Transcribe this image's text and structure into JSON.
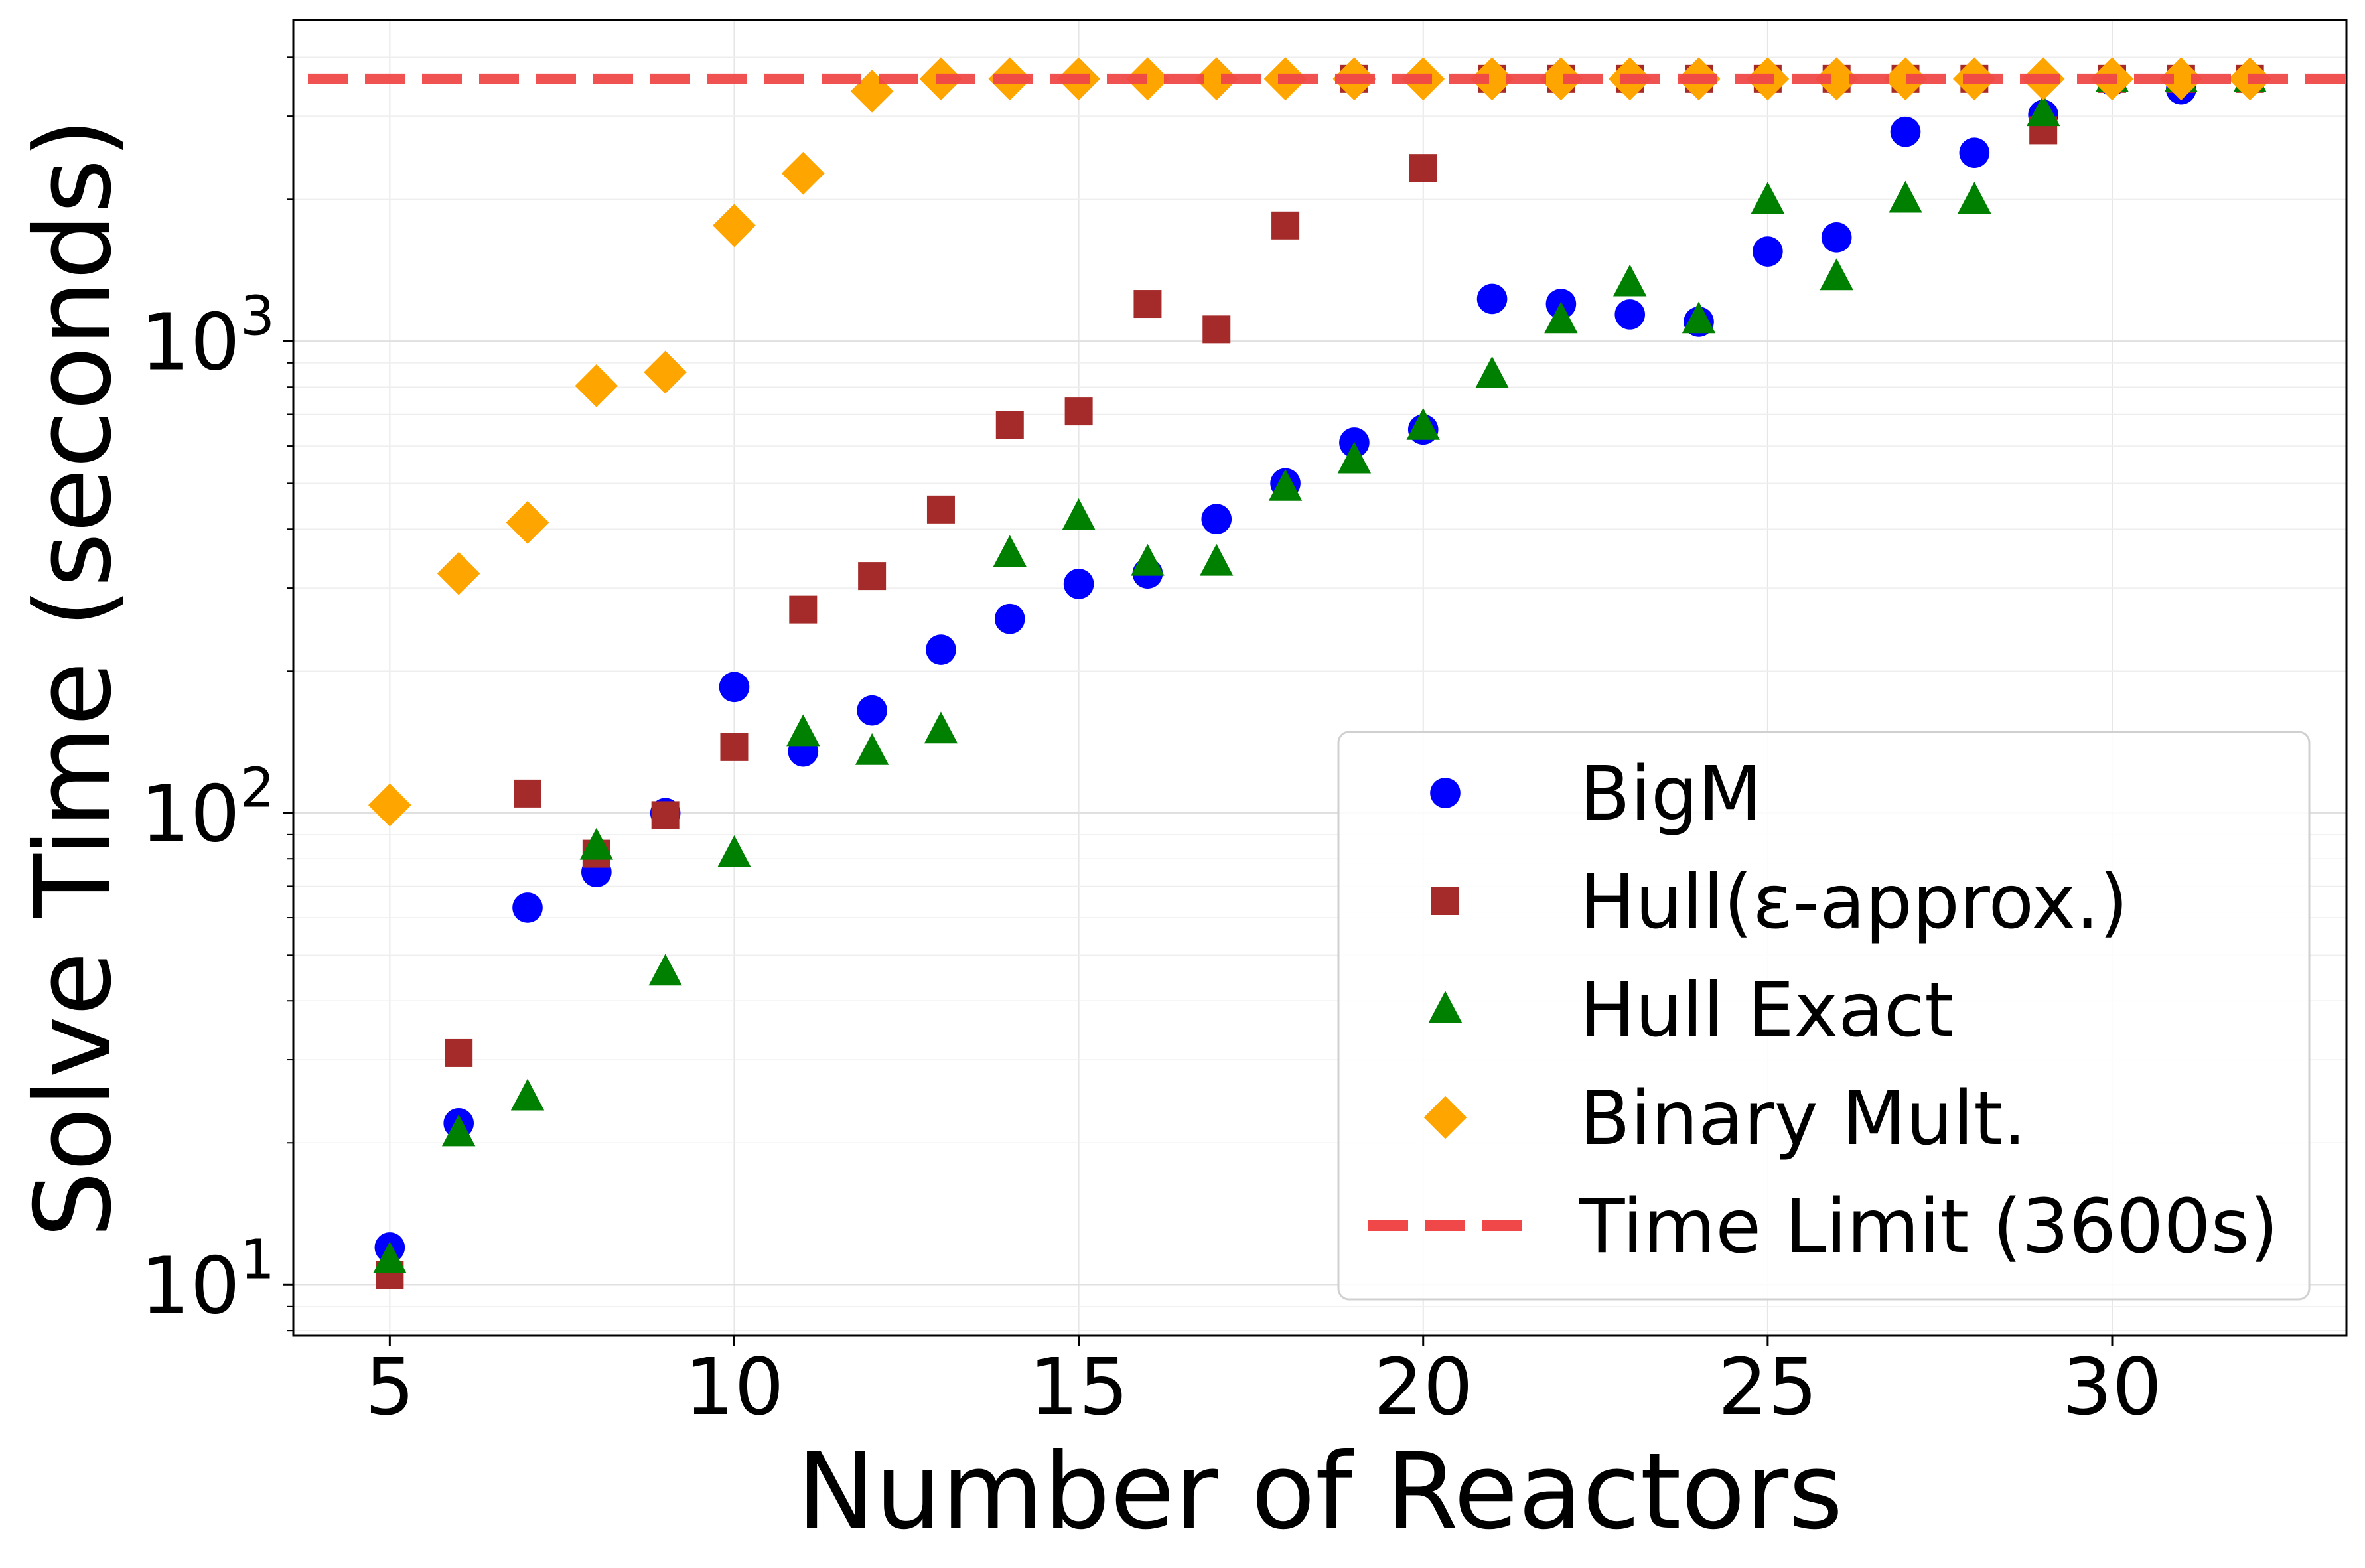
{
  "chart_data": {
    "type": "scatter",
    "xlabel": "Number of Reactors",
    "ylabel": "Solve Time (seconds)",
    "xlim": [
      3.6,
      33.4
    ],
    "ylim": [
      7.8,
      4800
    ],
    "yscale": "log",
    "grid": true,
    "legend_position": "lower-right",
    "x_ticks": [
      5,
      10,
      15,
      20,
      25,
      30
    ],
    "y_ticks": [
      {
        "value": 10,
        "base": "10",
        "exp": "1"
      },
      {
        "value": 100,
        "base": "10",
        "exp": "2"
      },
      {
        "value": 1000,
        "base": "10",
        "exp": "3"
      }
    ],
    "series": [
      {
        "name": "BigM",
        "marker": "circle",
        "color": "#0000ff",
        "x": [
          5,
          6,
          7,
          8,
          9,
          10,
          11,
          12,
          13,
          14,
          15,
          16,
          17,
          18,
          19,
          20,
          21,
          22,
          23,
          24,
          25,
          26,
          27,
          28,
          29,
          30,
          31,
          32
        ],
        "y": [
          12,
          22,
          63,
          75,
          100,
          185,
          135,
          165,
          222,
          258,
          306,
          322,
          420,
          500,
          610,
          650,
          1230,
          1200,
          1140,
          1100,
          1550,
          1660,
          2780,
          2510,
          3020,
          3570,
          3420,
          3600
        ]
      },
      {
        "name": "Hull(ε-approx.)",
        "marker": "square",
        "color": "#a52a2a",
        "x": [
          5,
          6,
          7,
          8,
          9,
          10,
          11,
          12,
          13,
          14,
          15,
          16,
          17,
          18,
          19,
          20,
          21,
          22,
          23,
          24,
          25,
          26,
          27,
          28,
          29,
          30,
          31,
          32
        ],
        "y": [
          10.5,
          31,
          110,
          82,
          99,
          138,
          270,
          318,
          440,
          665,
          710,
          1200,
          1060,
          1760,
          3600,
          2330,
          3600,
          3600,
          3600,
          3600,
          3600,
          3600,
          3600,
          3600,
          2800,
          3600,
          3600,
          3600
        ]
      },
      {
        "name": "Hull Exact",
        "marker": "triangle",
        "color": "#008000",
        "x": [
          5,
          6,
          7,
          8,
          9,
          10,
          11,
          12,
          13,
          14,
          15,
          16,
          17,
          18,
          19,
          20,
          21,
          22,
          23,
          24,
          25,
          26,
          27,
          28,
          29,
          30,
          31,
          32
        ],
        "y": [
          11.3,
          21,
          25,
          85,
          46,
          82,
          148,
          135,
          150,
          355,
          425,
          340,
          340,
          490,
          560,
          660,
          850,
          1110,
          1330,
          1110,
          1990,
          1370,
          2000,
          1990,
          3050,
          3600,
          3600,
          3600
        ]
      },
      {
        "name": "Binary Mult.",
        "marker": "diamond",
        "color": "#ffa500",
        "x": [
          5,
          6,
          7,
          8,
          9,
          10,
          11,
          12,
          13,
          14,
          15,
          16,
          17,
          18,
          19,
          20,
          21,
          22,
          23,
          24,
          25,
          26,
          27,
          28,
          29,
          30,
          31,
          32
        ],
        "y": [
          104,
          322,
          413,
          805,
          860,
          1760,
          2270,
          3390,
          3600,
          3600,
          3600,
          3600,
          3600,
          3600,
          3600,
          3600,
          3600,
          3600,
          3600,
          3600,
          3600,
          3600,
          3600,
          3600,
          3600,
          3600,
          3600,
          3600
        ]
      }
    ],
    "reference_line": {
      "name": "Time Limit (3600s)",
      "y": 3600,
      "style": "dashed",
      "color": "#f04848"
    }
  }
}
